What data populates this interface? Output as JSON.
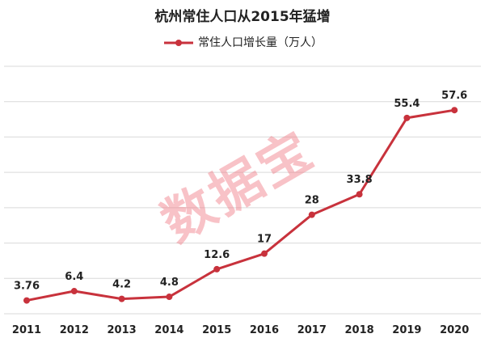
{
  "chart_data": {
    "type": "line",
    "title": "杭州常住人口从2015年猛增",
    "xlabel": "",
    "ylabel": "",
    "categories": [
      "2011",
      "2012",
      "2013",
      "2014",
      "2015",
      "2016",
      "2017",
      "2018",
      "2019",
      "2020"
    ],
    "series": [
      {
        "name": "常住人口增长量（万人）",
        "values": [
          3.76,
          6.4,
          4.2,
          4.8,
          12.6,
          17,
          28,
          33.8,
          55.4,
          57.6
        ],
        "labels": [
          "3.76",
          "6.4",
          "4.2",
          "4.8",
          "12.6",
          "17",
          "28",
          "33.8",
          "55.4",
          "57.6"
        ],
        "color": "#c8323c"
      }
    ],
    "ylim": [
      0,
      70
    ],
    "ytick_step": 10,
    "y_tick_labels_shown": false,
    "grid": true,
    "legend_position": "top"
  },
  "watermark": "数据宝"
}
